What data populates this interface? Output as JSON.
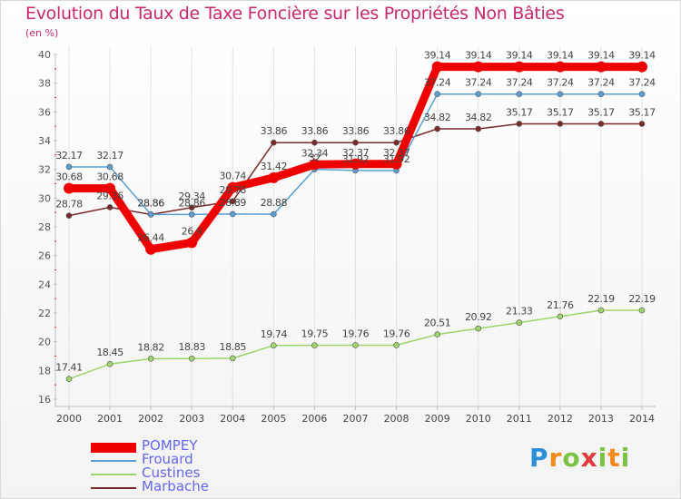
{
  "title": "Evolution du Taux de Taxe Foncière sur les Propriétés Non Bâties",
  "unit": "(en %)",
  "brand": "Proxiti",
  "chart_data": {
    "type": "line",
    "x": [
      2000,
      2001,
      2002,
      2003,
      2004,
      2005,
      2006,
      2007,
      2008,
      2009,
      2010,
      2011,
      2012,
      2013,
      2014
    ],
    "ylim": [
      16,
      40
    ],
    "yticks": [
      16,
      18,
      20,
      22,
      24,
      26,
      28,
      30,
      32,
      34,
      36,
      38,
      40
    ],
    "grid": "vertical",
    "legend_position": "bottom-left",
    "series": [
      {
        "name": "POMPEY",
        "color": "#ee0000",
        "width": 9,
        "values": [
          30.68,
          30.68,
          26.44,
          26.9,
          30.74,
          31.42,
          32.34,
          32.37,
          32.37,
          39.14,
          39.14,
          39.14,
          39.14,
          39.14,
          39.14
        ],
        "labels": [
          "30.68",
          "30.68",
          "26.44",
          "26.9",
          "30.74",
          "31.42",
          "32.34",
          "32.37",
          "32.37",
          "39.14",
          "39.14",
          "39.14",
          "39.14",
          "39.14",
          "39.14"
        ]
      },
      {
        "name": "Frouard",
        "color": "#5a9fd4",
        "width": 1.5,
        "values": [
          32.17,
          32.17,
          28.86,
          28.86,
          28.89,
          28.88,
          32,
          31.92,
          31.92,
          37.24,
          37.24,
          37.24,
          37.24,
          37.24,
          37.24
        ],
        "labels": [
          "32.17",
          "32.17",
          "28.86",
          "28.86",
          "28.89",
          "28.88",
          "32",
          "31.92",
          "31.92",
          "37.24",
          "37.24",
          "37.24",
          "37.24",
          "37.24",
          "37.24"
        ]
      },
      {
        "name": "Custines",
        "color": "#9fd46a",
        "width": 1.5,
        "values": [
          17.41,
          18.45,
          18.82,
          18.83,
          18.85,
          19.74,
          19.75,
          19.76,
          19.76,
          20.51,
          20.92,
          21.33,
          21.76,
          22.19,
          22.19
        ],
        "labels": [
          "17.41",
          "18.45",
          "18.82",
          "18.83",
          "18.85",
          "19.74",
          "19.75",
          "19.76",
          "19.76",
          "20.51",
          "20.92",
          "21.33",
          "21.76",
          "22.19",
          "22.19"
        ]
      },
      {
        "name": "Marbache",
        "color": "#7a2a2a",
        "width": 1.5,
        "values": [
          28.78,
          29.36,
          28.86,
          29.34,
          29.78,
          33.86,
          33.86,
          33.86,
          33.86,
          34.82,
          34.82,
          35.17,
          35.17,
          35.17,
          35.17
        ],
        "labels": [
          "28.78",
          "29.36",
          "28.86",
          "29.34",
          "29.78",
          "33.86",
          "33.86",
          "33.86",
          "33.86",
          "34.82",
          "34.82",
          "35.17",
          "35.17",
          "35.17",
          "35.17"
        ]
      }
    ]
  }
}
